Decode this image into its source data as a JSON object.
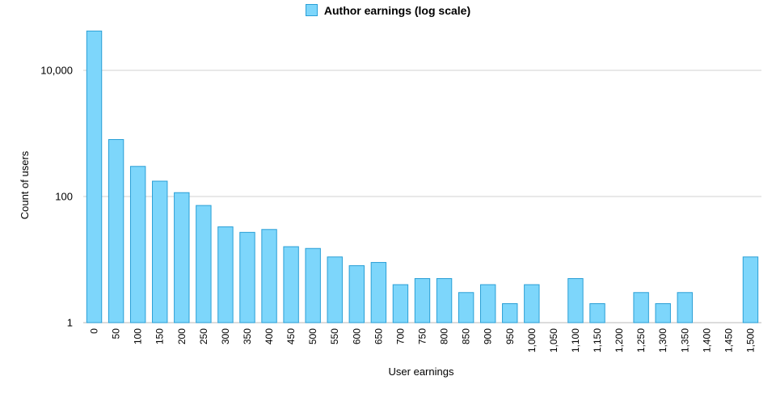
{
  "chart_data": {
    "type": "bar",
    "title": "",
    "legend": {
      "label": "Author earnings (log scale)",
      "placement": "top-center"
    },
    "xlabel": "User earnings",
    "ylabel": "Count of users",
    "y_scale": "log",
    "ylim": [
      1,
      40000
    ],
    "y_ticks": [
      1,
      100,
      10000
    ],
    "y_tick_labels": [
      "1",
      "100",
      "10,000"
    ],
    "grid": true,
    "colors": {
      "bar_fill": "#7dd6fb",
      "bar_stroke": "#2a9fd6",
      "grid": "#d0d0d0"
    },
    "categories": [
      "0",
      "50",
      "100",
      "150",
      "200",
      "250",
      "300",
      "350",
      "400",
      "450",
      "500",
      "550",
      "600",
      "650",
      "700",
      "750",
      "800",
      "850",
      "900",
      "950",
      "1,000",
      "1,050",
      "1,100",
      "1,150",
      "1,200",
      "1,250",
      "1,300",
      "1,350",
      "1,400",
      "1,450",
      "1,500"
    ],
    "values": [
      42000,
      800,
      300,
      175,
      115,
      72,
      33,
      27,
      30,
      16,
      15,
      11,
      8,
      9,
      4,
      5,
      5,
      3,
      4,
      2,
      4,
      0,
      5,
      2,
      0,
      3,
      2,
      3,
      0,
      0,
      11
    ]
  }
}
